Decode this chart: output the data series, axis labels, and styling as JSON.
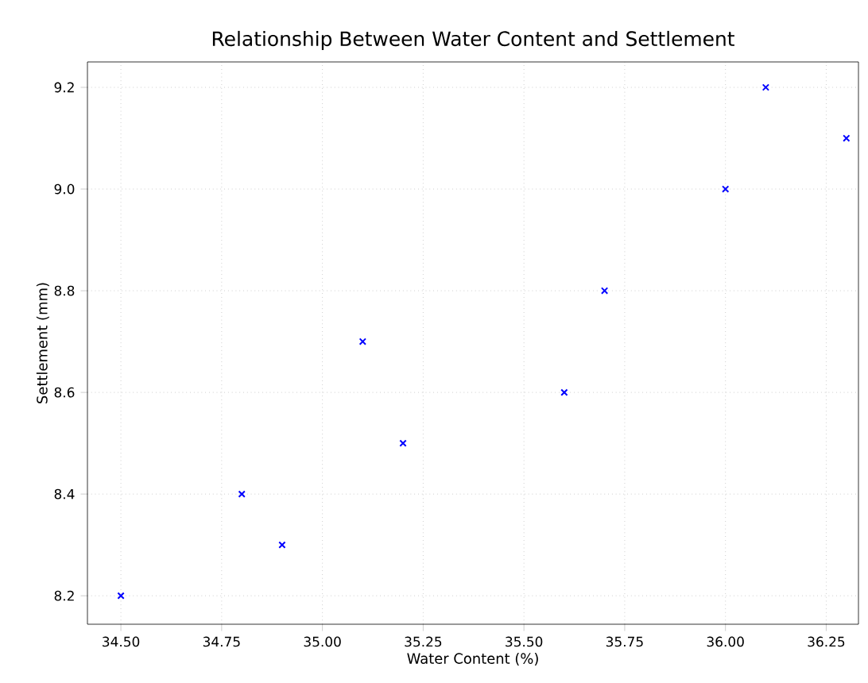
{
  "chart_data": {
    "type": "scatter",
    "title": "Relationship Between Water Content and Settlement",
    "xlabel": "Water Content (%)",
    "ylabel": "Settlement (mm)",
    "x": [
      34.5,
      34.8,
      34.9,
      35.1,
      35.2,
      35.6,
      35.7,
      36.0,
      36.1,
      36.3
    ],
    "values": [
      8.2,
      8.4,
      8.3,
      8.7,
      8.5,
      8.6,
      8.8,
      9.0,
      9.2,
      9.1
    ],
    "color": "#0000ff",
    "marker": "cross",
    "grid": true,
    "xlim": [
      34.417,
      36.33
    ],
    "ylim": [
      8.144,
      9.25
    ],
    "xticks": [
      {
        "value": 34.5,
        "label": "34.50"
      },
      {
        "value": 34.75,
        "label": "34.75"
      },
      {
        "value": 35.0,
        "label": "35.00"
      },
      {
        "value": 35.25,
        "label": "35.25"
      },
      {
        "value": 35.5,
        "label": "35.50"
      },
      {
        "value": 35.75,
        "label": "35.75"
      },
      {
        "value": 36.0,
        "label": "36.00"
      },
      {
        "value": 36.25,
        "label": "36.25"
      }
    ],
    "yticks": [
      {
        "value": 8.2,
        "label": "8.2"
      },
      {
        "value": 8.4,
        "label": "8.4"
      },
      {
        "value": 8.6,
        "label": "8.6"
      },
      {
        "value": 8.8,
        "label": "8.8"
      },
      {
        "value": 9.0,
        "label": "9.0"
      },
      {
        "value": 9.2,
        "label": "9.2"
      }
    ]
  }
}
